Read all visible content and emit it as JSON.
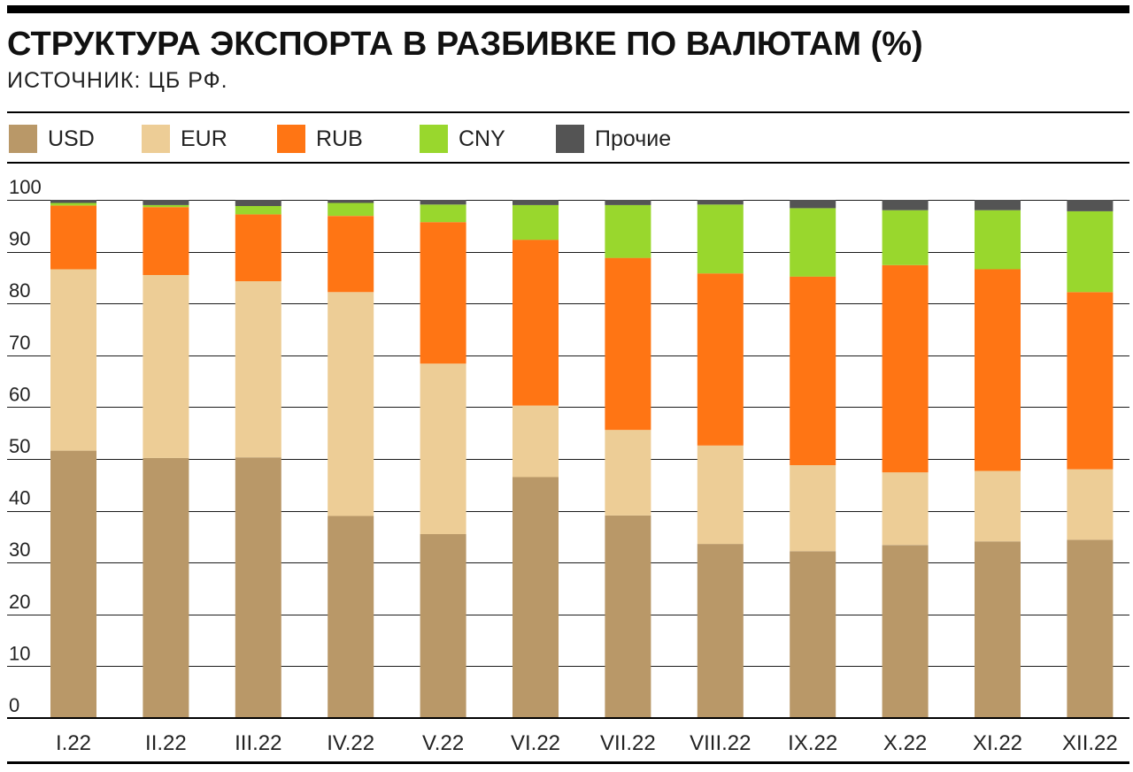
{
  "header": {
    "title": "СТРУКТУРА ЭКСПОРТА В РАЗБИВКЕ ПО ВАЛЮТАМ (%)",
    "source": "ИСТОЧНИК: ЦБ РФ."
  },
  "chart_data": {
    "type": "bar",
    "stacked": true,
    "title": "СТРУКТУРА ЭКСПОРТА В РАЗБИВКЕ ПО ВАЛЮТАМ (%)",
    "xlabel": "",
    "ylabel": "",
    "ylim": [
      0,
      100
    ],
    "yticks": [
      0,
      10,
      20,
      30,
      40,
      50,
      60,
      70,
      80,
      90,
      100
    ],
    "grid": true,
    "legend": "top",
    "categories": [
      "I.22",
      "II.22",
      "III.22",
      "IV.22",
      "V.22",
      "VI.22",
      "VII.22",
      "VIII.22",
      "IX.22",
      "X.22",
      "XI.22",
      "XII.22"
    ],
    "series": [
      {
        "name": "USD",
        "color": "#b99868",
        "values": [
          51.6,
          50.2,
          50.3,
          39.0,
          35.5,
          46.5,
          39.1,
          33.6,
          32.2,
          33.4,
          34.1,
          34.4
        ]
      },
      {
        "name": "EUR",
        "color": "#edcd96",
        "values": [
          35.0,
          35.3,
          34.0,
          43.2,
          32.9,
          13.8,
          16.5,
          19.0,
          16.6,
          14.0,
          13.6,
          13.6
        ]
      },
      {
        "name": "RUB",
        "color": "#ff7514",
        "values": [
          12.3,
          13.1,
          12.9,
          14.7,
          27.3,
          32.0,
          33.2,
          33.2,
          36.4,
          40.0,
          38.9,
          34.2
        ]
      },
      {
        "name": "CNY",
        "color": "#99d72d",
        "values": [
          0.5,
          0.4,
          1.6,
          2.5,
          3.4,
          6.7,
          10.2,
          13.3,
          13.2,
          10.6,
          11.4,
          15.6
        ]
      },
      {
        "name": "Прочие",
        "color": "#545454",
        "values": [
          0.6,
          1.0,
          1.2,
          0.6,
          0.9,
          1.0,
          1.0,
          0.9,
          1.6,
          2.0,
          2.0,
          2.2
        ]
      }
    ]
  }
}
